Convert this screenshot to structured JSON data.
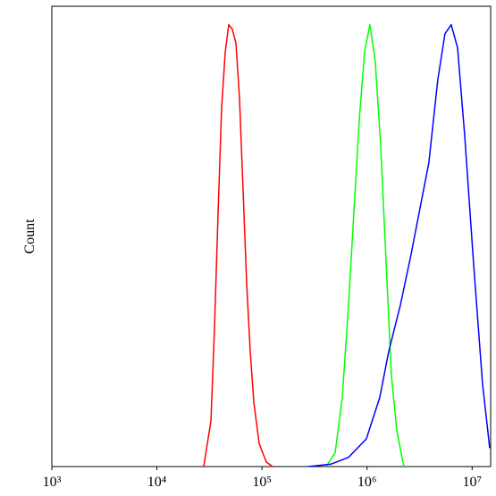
{
  "chart_data": {
    "type": "line",
    "ylabel": "Count",
    "xscale": "log",
    "xlim": [
      1000,
      15000000
    ],
    "xticks": [
      {
        "value": 1000,
        "label": "10³"
      },
      {
        "value": 10000,
        "label": "10⁴"
      },
      {
        "value": 100000,
        "label": "10⁵"
      },
      {
        "value": 1000000,
        "label": "10⁶"
      },
      {
        "value": 10000000,
        "label": "10⁷"
      }
    ],
    "ylim": [
      0,
      100
    ],
    "series": [
      {
        "color": "#ff0000",
        "x": [
          27900,
          32700,
          35300,
          38200,
          41300,
          44700,
          48300,
          52200,
          56500,
          61100,
          66100,
          71400,
          77300,
          83600,
          94000,
          110000,
          126000
        ],
        "values": [
          0,
          10,
          30,
          55,
          78,
          90,
          96,
          95,
          92,
          80,
          60,
          40,
          25,
          14,
          5,
          1,
          0
        ]
      },
      {
        "color": "#00ff00",
        "x": [
          408000,
          497000,
          581000,
          666000,
          748000,
          841000,
          946000,
          1064000,
          1197000,
          1346000,
          1514000,
          1702000,
          1914000,
          2239000
        ],
        "values": [
          0,
          3,
          15,
          35,
          55,
          75,
          90,
          96,
          88,
          70,
          45,
          20,
          8,
          0
        ]
      },
      {
        "color": "#0000ff",
        "x": [
          275000,
          450000,
          666000,
          984000,
          1321000,
          1607000,
          2072000,
          2619000,
          3184000,
          3873000,
          4710000,
          5509000,
          6324000,
          7262000,
          8492000,
          10330000,
          12560000,
          14700000
        ],
        "values": [
          0,
          0.5,
          2,
          6,
          15,
          25,
          35,
          46,
          56,
          66,
          84,
          94,
          96,
          91,
          72,
          44,
          18,
          4
        ]
      }
    ]
  }
}
